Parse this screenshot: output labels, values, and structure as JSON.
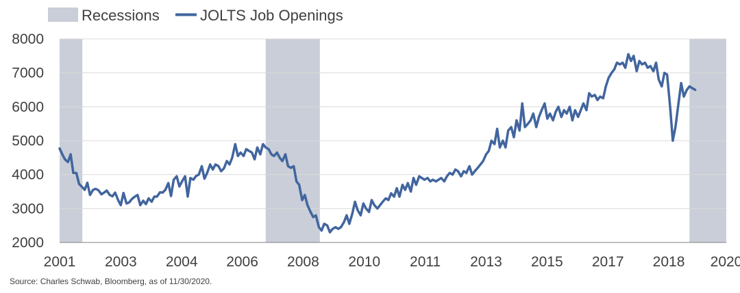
{
  "chart_data": {
    "type": "line",
    "legend": {
      "placement": "top-left",
      "items": [
        {
          "label": "Recessions",
          "kind": "band",
          "color": "#c9ced8"
        },
        {
          "label": "JOLTS Job Openings",
          "kind": "line",
          "color": "#41659e"
        }
      ]
    },
    "ylim": [
      2000,
      8000
    ],
    "yticks": [
      2000,
      3000,
      4000,
      5000,
      6000,
      7000,
      8000
    ],
    "xlim": [
      2000.92,
      2020.85
    ],
    "xticks": [
      {
        "label": "2001",
        "pos": 2000.92
      },
      {
        "label": "2003",
        "pos": 2002.75
      },
      {
        "label": "2004",
        "pos": 2004.57
      },
      {
        "label": "2006",
        "pos": 2006.38
      },
      {
        "label": "2008",
        "pos": 2008.2
      },
      {
        "label": "2010",
        "pos": 2010.03
      },
      {
        "label": "2011",
        "pos": 2011.85
      },
      {
        "label": "2013",
        "pos": 2013.67
      },
      {
        "label": "2015",
        "pos": 2015.49
      },
      {
        "label": "2017",
        "pos": 2017.31
      },
      {
        "label": "2018",
        "pos": 2019.13
      },
      {
        "label": "2020",
        "pos": 2020.85
      }
    ],
    "recessions": [
      {
        "start": 2000.92,
        "end": 2001.6
      },
      {
        "start": 2007.08,
        "end": 2008.7
      },
      {
        "start": 2019.75,
        "end": 2020.85
      }
    ],
    "series": [
      {
        "name": "JOLTS Job Openings",
        "color": "#41659e",
        "points": [
          [
            2000.92,
            4770
          ],
          [
            2001.0,
            4600
          ],
          [
            2001.08,
            4450
          ],
          [
            2001.17,
            4370
          ],
          [
            2001.25,
            4600
          ],
          [
            2001.33,
            4050
          ],
          [
            2001.42,
            4050
          ],
          [
            2001.5,
            3730
          ],
          [
            2001.58,
            3650
          ],
          [
            2001.67,
            3550
          ],
          [
            2001.75,
            3760
          ],
          [
            2001.83,
            3400
          ],
          [
            2001.92,
            3550
          ],
          [
            2002.0,
            3580
          ],
          [
            2002.08,
            3540
          ],
          [
            2002.17,
            3420
          ],
          [
            2002.25,
            3470
          ],
          [
            2002.33,
            3530
          ],
          [
            2002.42,
            3400
          ],
          [
            2002.5,
            3360
          ],
          [
            2002.58,
            3470
          ],
          [
            2002.67,
            3250
          ],
          [
            2002.75,
            3100
          ],
          [
            2002.83,
            3460
          ],
          [
            2002.92,
            3150
          ],
          [
            2003.0,
            3180
          ],
          [
            2003.08,
            3280
          ],
          [
            2003.17,
            3350
          ],
          [
            2003.25,
            3400
          ],
          [
            2003.33,
            3100
          ],
          [
            2003.42,
            3230
          ],
          [
            2003.5,
            3130
          ],
          [
            2003.58,
            3300
          ],
          [
            2003.67,
            3200
          ],
          [
            2003.75,
            3350
          ],
          [
            2003.83,
            3350
          ],
          [
            2003.92,
            3480
          ],
          [
            2004.0,
            3470
          ],
          [
            2004.08,
            3550
          ],
          [
            2004.17,
            3750
          ],
          [
            2004.25,
            3370
          ],
          [
            2004.33,
            3850
          ],
          [
            2004.42,
            3950
          ],
          [
            2004.5,
            3650
          ],
          [
            2004.58,
            3800
          ],
          [
            2004.67,
            3950
          ],
          [
            2004.75,
            3350
          ],
          [
            2004.83,
            3900
          ],
          [
            2004.92,
            3850
          ],
          [
            2005.0,
            3960
          ],
          [
            2005.08,
            4000
          ],
          [
            2005.17,
            4250
          ],
          [
            2005.25,
            3880
          ],
          [
            2005.33,
            4050
          ],
          [
            2005.42,
            4300
          ],
          [
            2005.5,
            4150
          ],
          [
            2005.58,
            4300
          ],
          [
            2005.67,
            4250
          ],
          [
            2005.75,
            4100
          ],
          [
            2005.83,
            4180
          ],
          [
            2005.92,
            4400
          ],
          [
            2006.0,
            4300
          ],
          [
            2006.08,
            4500
          ],
          [
            2006.17,
            4900
          ],
          [
            2006.25,
            4550
          ],
          [
            2006.33,
            4650
          ],
          [
            2006.42,
            4550
          ],
          [
            2006.5,
            4750
          ],
          [
            2006.58,
            4700
          ],
          [
            2006.67,
            4650
          ],
          [
            2006.75,
            4450
          ],
          [
            2006.83,
            4800
          ],
          [
            2006.92,
            4600
          ],
          [
            2007.0,
            4900
          ],
          [
            2007.08,
            4800
          ],
          [
            2007.17,
            4750
          ],
          [
            2007.25,
            4600
          ],
          [
            2007.33,
            4550
          ],
          [
            2007.42,
            4650
          ],
          [
            2007.5,
            4500
          ],
          [
            2007.58,
            4400
          ],
          [
            2007.67,
            4600
          ],
          [
            2007.75,
            4250
          ],
          [
            2007.83,
            4200
          ],
          [
            2007.92,
            4250
          ],
          [
            2008.0,
            3800
          ],
          [
            2008.08,
            3700
          ],
          [
            2008.17,
            3250
          ],
          [
            2008.25,
            3400
          ],
          [
            2008.33,
            3100
          ],
          [
            2008.42,
            2900
          ],
          [
            2008.5,
            2750
          ],
          [
            2008.58,
            2800
          ],
          [
            2008.67,
            2450
          ],
          [
            2008.75,
            2350
          ],
          [
            2008.83,
            2550
          ],
          [
            2008.92,
            2500
          ],
          [
            2009.0,
            2300
          ],
          [
            2009.08,
            2400
          ],
          [
            2009.17,
            2450
          ],
          [
            2009.25,
            2400
          ],
          [
            2009.33,
            2450
          ],
          [
            2009.42,
            2600
          ],
          [
            2009.5,
            2800
          ],
          [
            2009.58,
            2550
          ],
          [
            2009.67,
            2850
          ],
          [
            2009.75,
            3200
          ],
          [
            2009.83,
            2950
          ],
          [
            2009.92,
            2800
          ],
          [
            2010.0,
            3150
          ],
          [
            2010.08,
            3000
          ],
          [
            2010.17,
            2900
          ],
          [
            2010.25,
            3250
          ],
          [
            2010.33,
            3100
          ],
          [
            2010.42,
            3000
          ],
          [
            2010.5,
            3100
          ],
          [
            2010.58,
            3200
          ],
          [
            2010.67,
            3300
          ],
          [
            2010.75,
            3250
          ],
          [
            2010.83,
            3450
          ],
          [
            2010.92,
            3350
          ],
          [
            2011.0,
            3600
          ],
          [
            2011.08,
            3350
          ],
          [
            2011.17,
            3700
          ],
          [
            2011.25,
            3550
          ],
          [
            2011.33,
            3750
          ],
          [
            2011.42,
            3500
          ],
          [
            2011.5,
            3900
          ],
          [
            2011.58,
            3700
          ],
          [
            2011.67,
            3950
          ],
          [
            2011.75,
            3900
          ],
          [
            2011.83,
            3850
          ],
          [
            2011.92,
            3900
          ],
          [
            2012.0,
            3800
          ],
          [
            2012.08,
            3850
          ],
          [
            2012.17,
            3800
          ],
          [
            2012.25,
            3850
          ],
          [
            2012.33,
            3900
          ],
          [
            2012.42,
            3800
          ],
          [
            2012.5,
            3950
          ],
          [
            2012.58,
            4050
          ],
          [
            2012.67,
            4000
          ],
          [
            2012.75,
            4150
          ],
          [
            2012.83,
            4100
          ],
          [
            2012.92,
            3950
          ],
          [
            2013.0,
            4100
          ],
          [
            2013.08,
            4050
          ],
          [
            2013.17,
            4250
          ],
          [
            2013.25,
            4000
          ],
          [
            2013.33,
            4100
          ],
          [
            2013.42,
            4200
          ],
          [
            2013.5,
            4300
          ],
          [
            2013.58,
            4400
          ],
          [
            2013.67,
            4600
          ],
          [
            2013.75,
            4700
          ],
          [
            2013.83,
            5000
          ],
          [
            2013.92,
            4900
          ],
          [
            2014.0,
            5350
          ],
          [
            2014.08,
            4800
          ],
          [
            2014.17,
            5000
          ],
          [
            2014.25,
            4800
          ],
          [
            2014.33,
            5300
          ],
          [
            2014.42,
            5400
          ],
          [
            2014.5,
            5100
          ],
          [
            2014.58,
            5600
          ],
          [
            2014.67,
            5300
          ],
          [
            2014.75,
            6100
          ],
          [
            2014.83,
            5400
          ],
          [
            2014.92,
            5500
          ],
          [
            2015.0,
            5600
          ],
          [
            2015.08,
            5800
          ],
          [
            2015.17,
            5400
          ],
          [
            2015.25,
            5700
          ],
          [
            2015.33,
            5900
          ],
          [
            2015.42,
            6100
          ],
          [
            2015.5,
            5650
          ],
          [
            2015.58,
            5800
          ],
          [
            2015.67,
            5600
          ],
          [
            2015.75,
            5850
          ],
          [
            2015.83,
            6000
          ],
          [
            2015.92,
            5700
          ],
          [
            2016.0,
            5900
          ],
          [
            2016.08,
            5800
          ],
          [
            2016.17,
            6000
          ],
          [
            2016.25,
            5600
          ],
          [
            2016.33,
            5900
          ],
          [
            2016.42,
            5700
          ],
          [
            2016.5,
            5900
          ],
          [
            2016.58,
            6100
          ],
          [
            2016.67,
            5900
          ],
          [
            2016.75,
            6400
          ],
          [
            2016.83,
            6300
          ],
          [
            2016.92,
            6350
          ],
          [
            2017.0,
            6200
          ],
          [
            2017.08,
            6300
          ],
          [
            2017.17,
            6250
          ],
          [
            2017.25,
            6600
          ],
          [
            2017.33,
            6850
          ],
          [
            2017.42,
            7000
          ],
          [
            2017.5,
            7100
          ],
          [
            2017.58,
            7300
          ],
          [
            2017.67,
            7250
          ],
          [
            2017.75,
            7300
          ],
          [
            2017.83,
            7150
          ],
          [
            2017.92,
            7550
          ],
          [
            2018.0,
            7350
          ],
          [
            2018.08,
            7500
          ],
          [
            2018.17,
            7050
          ],
          [
            2018.25,
            7350
          ],
          [
            2018.33,
            7250
          ],
          [
            2018.42,
            7300
          ],
          [
            2018.5,
            7150
          ],
          [
            2018.58,
            7200
          ],
          [
            2018.67,
            7050
          ],
          [
            2018.75,
            7300
          ],
          [
            2018.83,
            6800
          ],
          [
            2018.92,
            6600
          ],
          [
            2019.0,
            7000
          ],
          [
            2019.08,
            6950
          ],
          [
            2019.17,
            6000
          ],
          [
            2019.25,
            5000
          ],
          [
            2019.33,
            5400
          ],
          [
            2019.42,
            6100
          ],
          [
            2019.5,
            6700
          ],
          [
            2019.58,
            6300
          ],
          [
            2019.67,
            6500
          ],
          [
            2019.75,
            6600
          ],
          [
            2019.83,
            6550
          ],
          [
            2019.92,
            6500
          ]
        ]
      }
    ],
    "source": "Source: Charles Schwab, Bloomberg, as of 11/30/2020."
  }
}
